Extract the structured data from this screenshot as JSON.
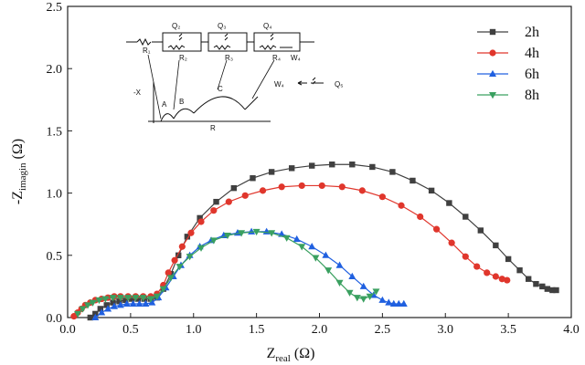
{
  "chart_data": {
    "type": "scatter",
    "xlabel": {
      "main": "Z",
      "sub": "real",
      "unit": " (Ω)"
    },
    "ylabel": {
      "prefix": "-Z",
      "sub": "imagin",
      "unit": " (Ω)"
    },
    "xlim": [
      0,
      4.0
    ],
    "ylim": [
      0,
      2.5
    ],
    "xticks": [
      "0.0",
      "0.5",
      "1.0",
      "1.5",
      "2.0",
      "2.5",
      "3.0",
      "3.5",
      "4.0"
    ],
    "yticks": [
      "0.0",
      "0.5",
      "1.0",
      "1.5",
      "2.0",
      "2.5"
    ],
    "legend_position": "top-right",
    "series": [
      {
        "name": "2h",
        "color": "#404040",
        "marker": "square",
        "x": [
          0.18,
          0.22,
          0.26,
          0.31,
          0.36,
          0.41,
          0.46,
          0.51,
          0.56,
          0.61,
          0.66,
          0.71,
          0.76,
          0.82,
          0.88,
          0.95,
          1.05,
          1.18,
          1.32,
          1.47,
          1.62,
          1.78,
          1.94,
          2.1,
          2.26,
          2.42,
          2.58,
          2.74,
          2.89,
          3.03,
          3.16,
          3.28,
          3.4,
          3.5,
          3.59,
          3.66,
          3.72,
          3.77,
          3.81,
          3.85,
          3.88
        ],
        "y": [
          0.0,
          0.03,
          0.07,
          0.1,
          0.12,
          0.13,
          0.14,
          0.15,
          0.15,
          0.15,
          0.15,
          0.16,
          0.23,
          0.35,
          0.5,
          0.65,
          0.8,
          0.93,
          1.04,
          1.12,
          1.17,
          1.2,
          1.22,
          1.23,
          1.23,
          1.21,
          1.17,
          1.1,
          1.02,
          0.92,
          0.81,
          0.7,
          0.58,
          0.47,
          0.38,
          0.31,
          0.27,
          0.25,
          0.23,
          0.22,
          0.22
        ]
      },
      {
        "name": "4h",
        "color": "#e0362c",
        "marker": "circle",
        "x": [
          0.05,
          0.08,
          0.11,
          0.14,
          0.18,
          0.22,
          0.27,
          0.32,
          0.37,
          0.42,
          0.48,
          0.54,
          0.6,
          0.66,
          0.71,
          0.76,
          0.8,
          0.85,
          0.91,
          0.98,
          1.06,
          1.16,
          1.28,
          1.41,
          1.55,
          1.7,
          1.86,
          2.02,
          2.18,
          2.34,
          2.5,
          2.65,
          2.8,
          2.93,
          3.05,
          3.16,
          3.25,
          3.33,
          3.4,
          3.45,
          3.49
        ],
        "y": [
          0.01,
          0.04,
          0.07,
          0.1,
          0.12,
          0.14,
          0.15,
          0.16,
          0.17,
          0.17,
          0.17,
          0.17,
          0.17,
          0.17,
          0.19,
          0.26,
          0.36,
          0.46,
          0.57,
          0.68,
          0.77,
          0.86,
          0.93,
          0.98,
          1.02,
          1.05,
          1.06,
          1.06,
          1.05,
          1.02,
          0.97,
          0.9,
          0.81,
          0.71,
          0.6,
          0.49,
          0.41,
          0.36,
          0.33,
          0.31,
          0.3
        ]
      },
      {
        "name": "6h",
        "color": "#2060e0",
        "marker": "triangle-up",
        "x": [
          0.22,
          0.27,
          0.32,
          0.37,
          0.42,
          0.47,
          0.52,
          0.57,
          0.62,
          0.67,
          0.72,
          0.78,
          0.84,
          0.9,
          0.97,
          1.05,
          1.14,
          1.24,
          1.35,
          1.46,
          1.58,
          1.7,
          1.82,
          1.94,
          2.05,
          2.16,
          2.26,
          2.35,
          2.43,
          2.5,
          2.55,
          2.59,
          2.63,
          2.67
        ],
        "y": [
          0.0,
          0.04,
          0.07,
          0.09,
          0.1,
          0.11,
          0.11,
          0.11,
          0.11,
          0.12,
          0.16,
          0.24,
          0.33,
          0.42,
          0.5,
          0.57,
          0.62,
          0.66,
          0.68,
          0.69,
          0.69,
          0.67,
          0.63,
          0.57,
          0.5,
          0.42,
          0.33,
          0.25,
          0.18,
          0.14,
          0.12,
          0.11,
          0.11,
          0.11
        ]
      },
      {
        "name": "8h",
        "color": "#3aa060",
        "marker": "triangle-down",
        "x": [
          0.08,
          0.12,
          0.16,
          0.2,
          0.25,
          0.3,
          0.36,
          0.42,
          0.48,
          0.54,
          0.6,
          0.66,
          0.71,
          0.76,
          0.82,
          0.89,
          0.97,
          1.06,
          1.16,
          1.27,
          1.38,
          1.5,
          1.62,
          1.74,
          1.86,
          1.97,
          2.07,
          2.16,
          2.24,
          2.3,
          2.35,
          2.4,
          2.45
        ],
        "y": [
          0.03,
          0.07,
          0.1,
          0.12,
          0.14,
          0.15,
          0.16,
          0.16,
          0.16,
          0.16,
          0.16,
          0.15,
          0.17,
          0.23,
          0.32,
          0.41,
          0.49,
          0.56,
          0.62,
          0.66,
          0.68,
          0.69,
          0.68,
          0.64,
          0.57,
          0.48,
          0.38,
          0.28,
          0.2,
          0.16,
          0.15,
          0.17,
          0.21
        ]
      }
    ],
    "inset": {
      "labels": [
        "Q₂",
        "Q₃",
        "Q₄",
        "R₁",
        "R₂",
        "R₃",
        "R₄",
        "W₄",
        "-X",
        "A",
        "B",
        "C",
        "R",
        "W₄",
        "Q₅"
      ]
    }
  }
}
